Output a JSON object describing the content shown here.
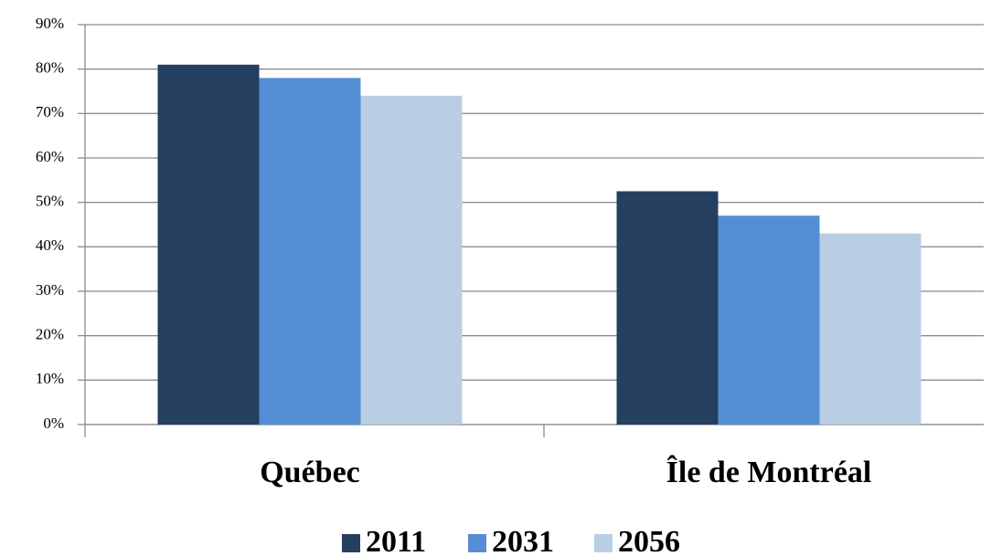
{
  "chart_data": {
    "type": "bar",
    "categories": [
      "Québec",
      "Île de Montréal"
    ],
    "series": [
      {
        "name": "2011",
        "color": "#243f60",
        "values": [
          81,
          52.5
        ]
      },
      {
        "name": "2031",
        "color": "#558ed5",
        "values": [
          78,
          47
        ]
      },
      {
        "name": "2056",
        "color": "#b9cde5",
        "values": [
          74,
          43
        ]
      }
    ],
    "ylim": [
      0,
      90
    ],
    "yticks": [
      {
        "value": 0,
        "label": "0%"
      },
      {
        "value": 10,
        "label": "10%"
      },
      {
        "value": 20,
        "label": "20%"
      },
      {
        "value": 30,
        "label": "30%"
      },
      {
        "value": 40,
        "label": "40%"
      },
      {
        "value": 50,
        "label": "50%"
      },
      {
        "value": 60,
        "label": "60%"
      },
      {
        "value": 70,
        "label": "70%"
      },
      {
        "value": 80,
        "label": "80%"
      },
      {
        "value": 90,
        "label": "90%"
      }
    ],
    "grid": true,
    "legend": "bottom"
  }
}
